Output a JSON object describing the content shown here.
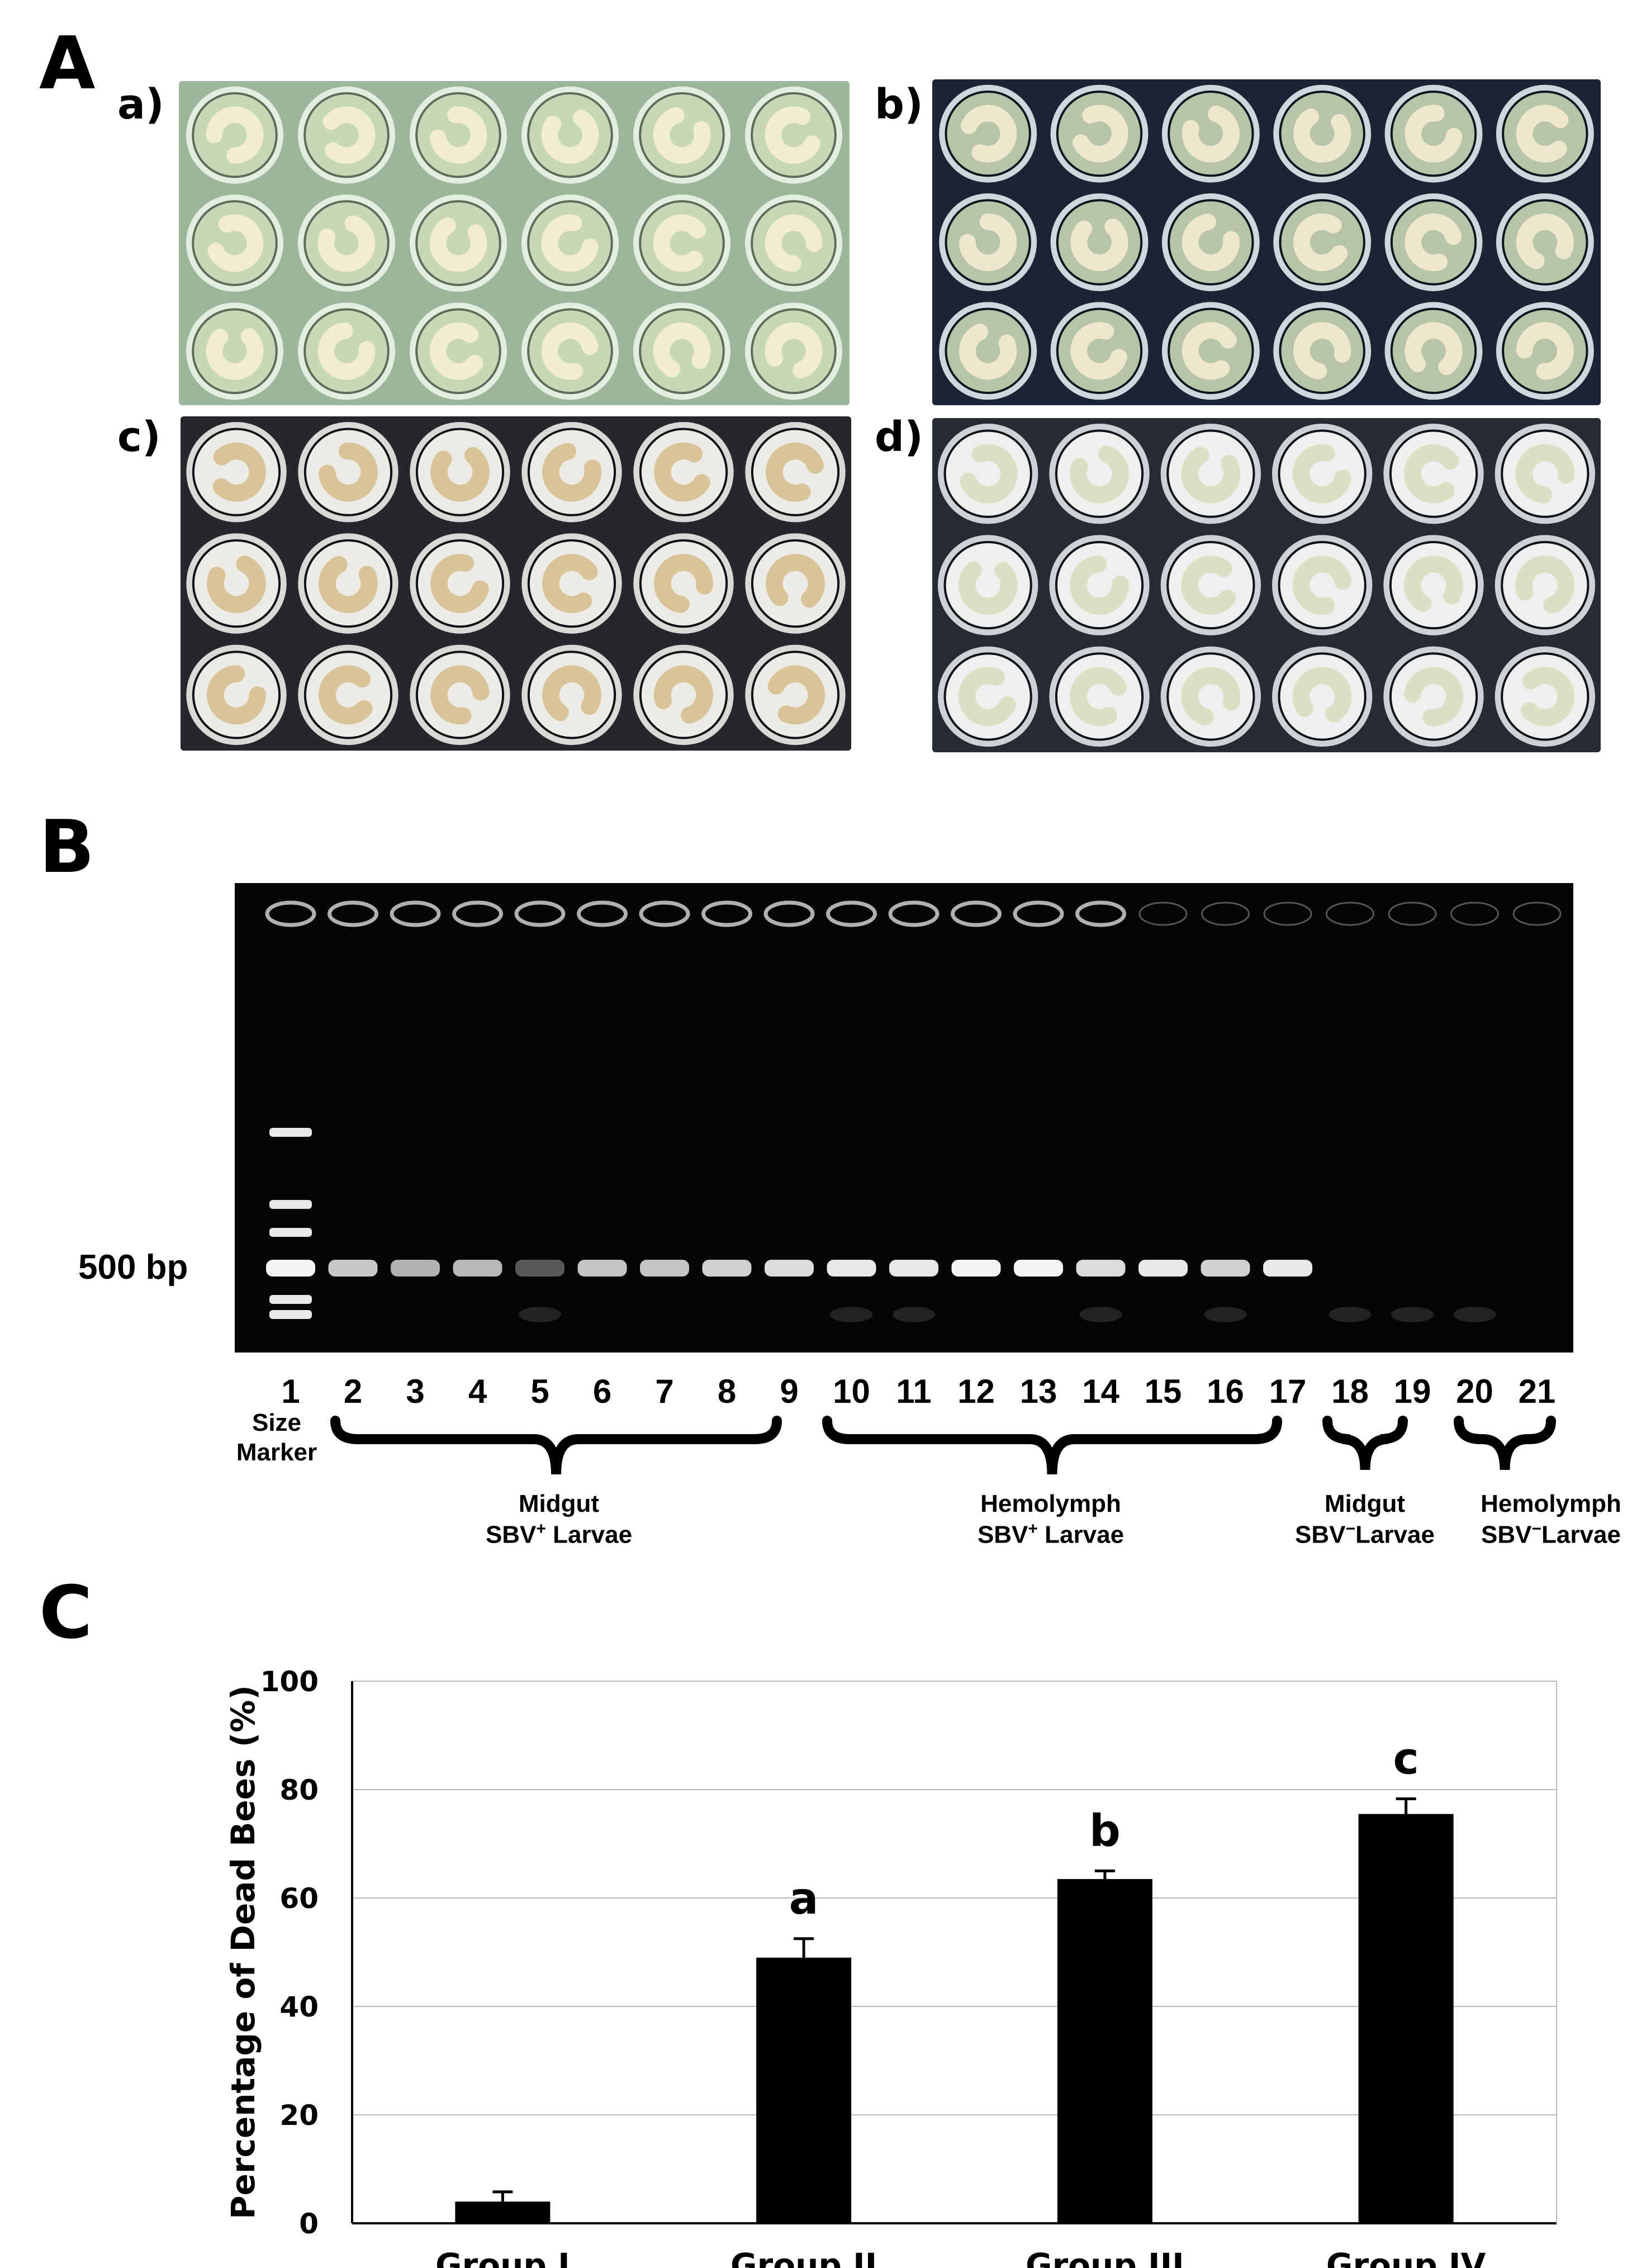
{
  "panel_a": {
    "label": "A",
    "plates": [
      {
        "label": "a)",
        "tone": "healthy-green"
      },
      {
        "label": "b)",
        "tone": "healthy-dark"
      },
      {
        "label": "c)",
        "tone": "dead-brown"
      },
      {
        "label": "d)",
        "tone": "dead-pale"
      }
    ]
  },
  "panel_b": {
    "label": "B",
    "marker_label": "500 bp",
    "lanes": [
      "1",
      "2",
      "3",
      "4",
      "5",
      "6",
      "7",
      "8",
      "9",
      "10",
      "11",
      "12",
      "13",
      "14",
      "15",
      "16",
      "17",
      "18",
      "19",
      "20",
      "21"
    ],
    "size_marker_label": "Size\nMarker",
    "band_intensity": [
      1.0,
      0.82,
      0.72,
      0.75,
      0.35,
      0.8,
      0.8,
      0.85,
      0.9,
      0.95,
      0.95,
      1.0,
      1.0,
      0.9,
      0.95,
      0.85,
      0.95,
      0,
      0,
      0,
      0
    ],
    "groups": [
      {
        "line1": "Midgut",
        "line2_pre": "SBV",
        "line2_sup": "+",
        "line2_post": " Larvae"
      },
      {
        "line1": "Hemolymph",
        "line2_pre": "SBV",
        "line2_sup": "+",
        "line2_post": " Larvae"
      },
      {
        "line1": "Midgut",
        "line2_pre": "SBV",
        "line2_sup": "−",
        "line2_post": "Larvae"
      },
      {
        "line1": "Hemolymph",
        "line2_pre": "SBV",
        "line2_sup": "−",
        "line2_post": "Larvae"
      }
    ]
  },
  "panel_c": {
    "label": "C"
  },
  "chart_data": {
    "type": "bar",
    "categories": [
      "Group I",
      "Group II",
      "Group III",
      "Group IV"
    ],
    "values": [
      4,
      49,
      63.5,
      75.5
    ],
    "errors": [
      1.8,
      3.5,
      1.5,
      2.8
    ],
    "significance": [
      "",
      "a",
      "b",
      "c"
    ],
    "ylabel": "Percentage of Dead Bees (%)",
    "ylim": [
      0,
      100
    ],
    "yticks": [
      0,
      20,
      40,
      60,
      80,
      100
    ],
    "grid": true,
    "bar_color": "#000000"
  }
}
